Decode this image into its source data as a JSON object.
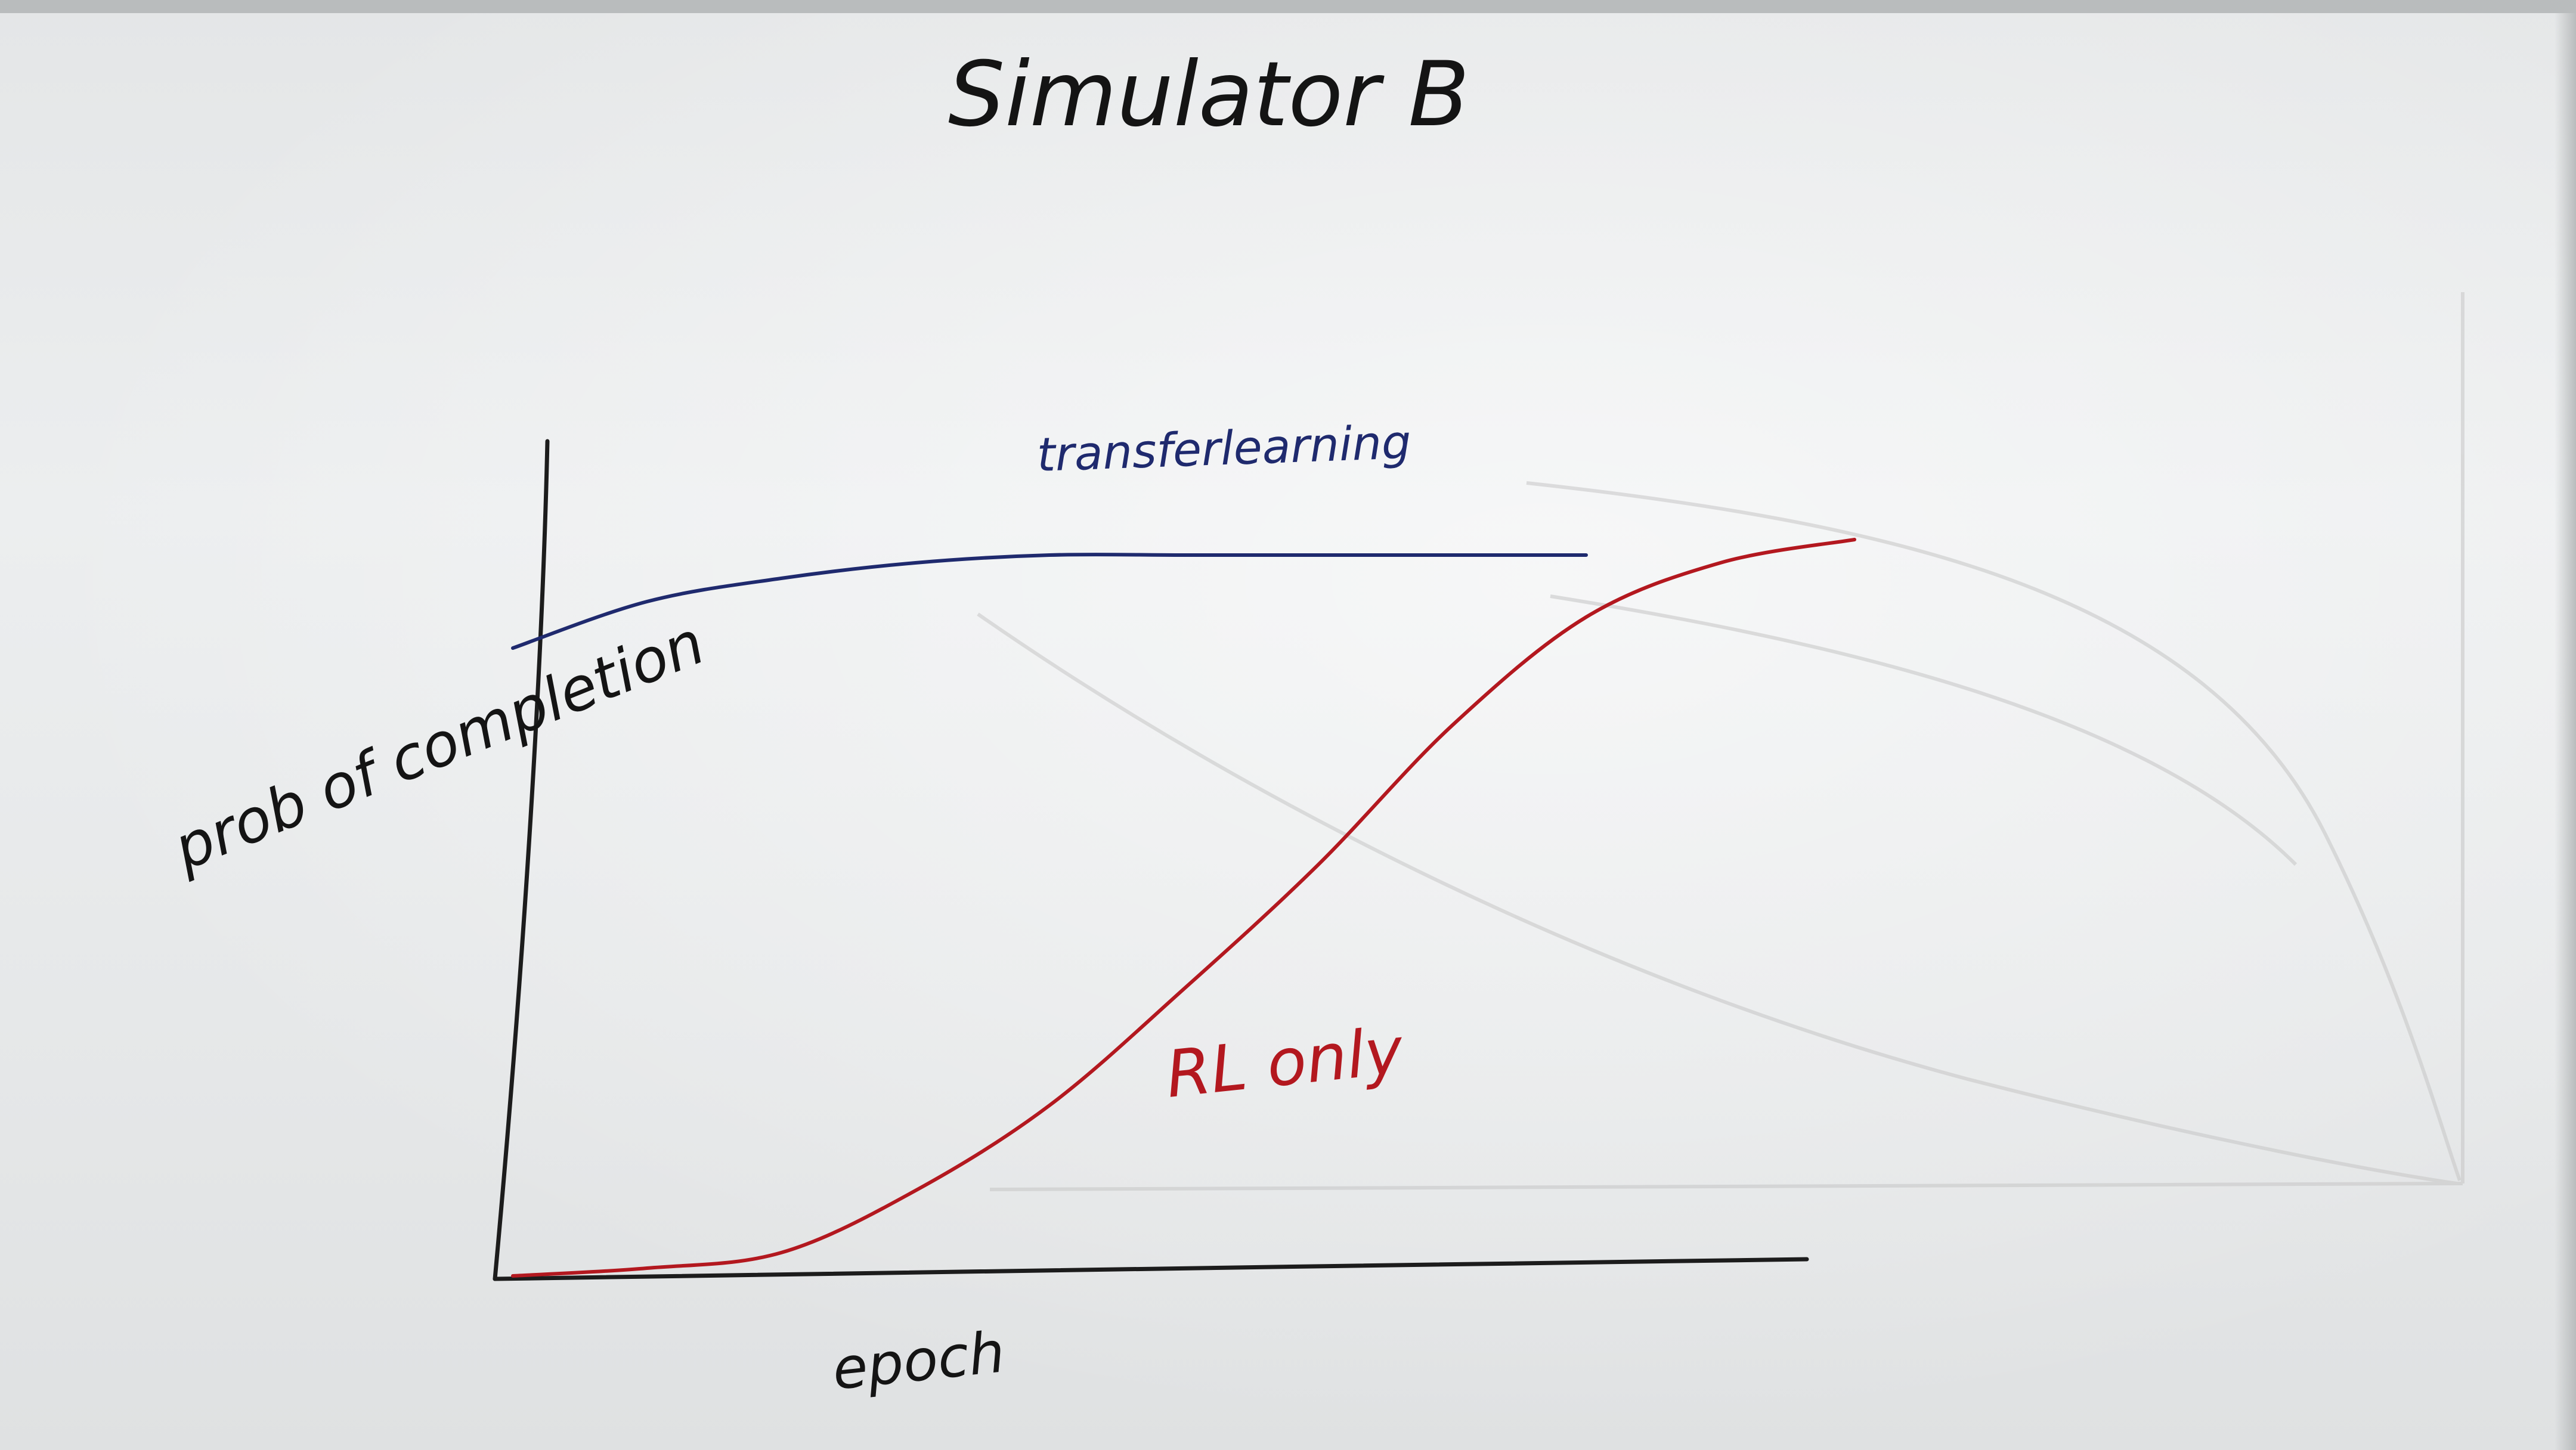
{
  "chart_data": {
    "type": "line",
    "title": "Simulator B",
    "xlabel": "epoch",
    "ylabel": "prob of completion",
    "grid": false,
    "legend": "inline labels next to curves",
    "x": [
      0,
      0.1,
      0.2,
      0.3,
      0.4,
      0.5,
      0.6,
      0.7,
      0.8,
      0.9,
      1.0
    ],
    "series": [
      {
        "name": "transferlearning",
        "color": "#1f2a6e",
        "values": [
          0.81,
          0.87,
          0.9,
          0.92,
          0.93,
          0.93,
          0.93,
          0.93,
          0.93,
          null,
          null
        ]
      },
      {
        "name": "RL only",
        "color": "#b3181f",
        "values": [
          0.0,
          0.01,
          0.03,
          0.11,
          0.22,
          0.37,
          0.53,
          0.71,
          0.85,
          0.92,
          0.95
        ]
      }
    ],
    "xlim": [
      0,
      1
    ],
    "ylim": [
      0,
      1
    ]
  }
}
